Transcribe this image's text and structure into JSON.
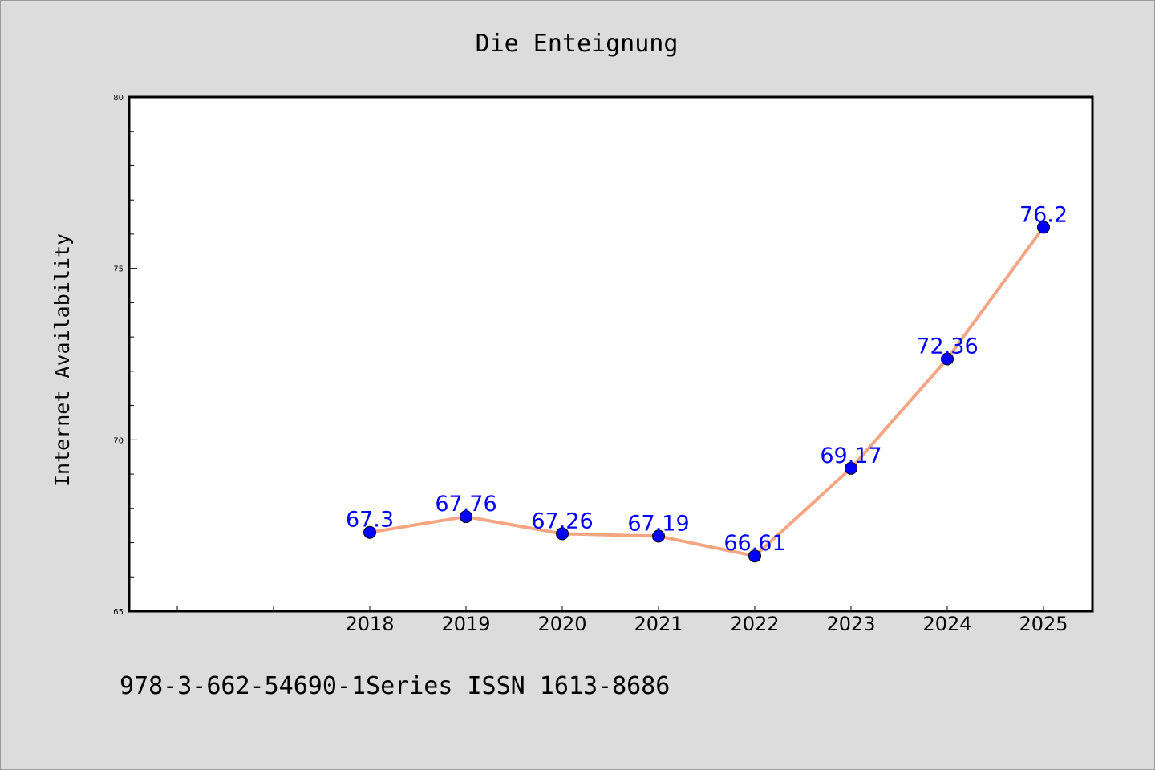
{
  "chart_data": {
    "type": "line",
    "title": "Die Enteignung",
    "xlabel": "",
    "ylabel": "Internet Availability",
    "footer": "978-3-662-54690-1Series ISSN 1613-8686",
    "categories": [
      "2018",
      "2019",
      "2020",
      "2021",
      "2022",
      "2023",
      "2024",
      "2025"
    ],
    "series": [
      {
        "values": [
          67.3,
          67.76,
          67.26,
          67.19,
          66.61,
          69.17,
          72.36,
          76.2
        ],
        "labels": [
          "67.3",
          "67.76",
          "67.26",
          "67.19",
          "66.61",
          "69.17",
          "72.36",
          "76.2"
        ],
        "line_color": "#f4a582",
        "marker_color": "#0000ff"
      }
    ],
    "ylim": [
      65,
      80
    ],
    "y_ticks": [
      "65",
      "70",
      "75",
      "80"
    ],
    "grid": false,
    "legend": "none"
  }
}
